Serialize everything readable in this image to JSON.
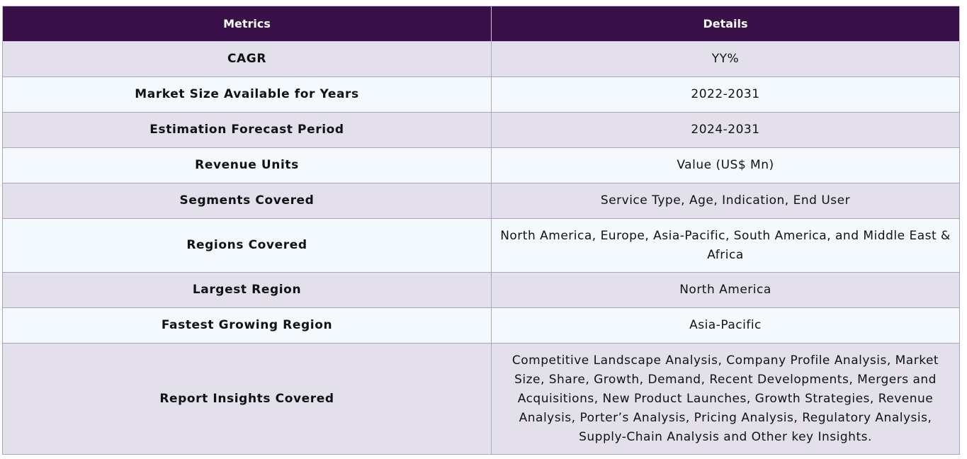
{
  "table": {
    "headers": {
      "metrics": "Metrics",
      "details": "Details"
    },
    "rows": [
      {
        "metric": "CAGR",
        "detail": "YY%"
      },
      {
        "metric": "Market Size Available for Years",
        "detail": "2022-2031"
      },
      {
        "metric": "Estimation Forecast Period",
        "detail": "2024-2031"
      },
      {
        "metric": "Revenue Units",
        "detail": "Value (US$ Mn)"
      },
      {
        "metric": "Segments Covered",
        "detail": "Service Type, Age, Indication, End User"
      },
      {
        "metric": "Regions Covered",
        "detail": "North America, Europe, Asia-Pacific, South America, and Middle East & Africa"
      },
      {
        "metric": "Largest Region",
        "detail": "North America"
      },
      {
        "metric": "Fastest Growing Region",
        "detail": "Asia-Pacific"
      },
      {
        "metric": "Report Insights Covered",
        "detail": "Competitive Landscape Analysis, Company Profile Analysis, Market Size, Share, Growth, Demand, Recent Developments, Mergers and Acquisitions, New Product Launches, Growth Strategies, Revenue Analysis, Porter’s Analysis, Pricing Analysis, Regulatory Analysis, Supply-Chain Analysis and Other key Insights."
      }
    ]
  }
}
